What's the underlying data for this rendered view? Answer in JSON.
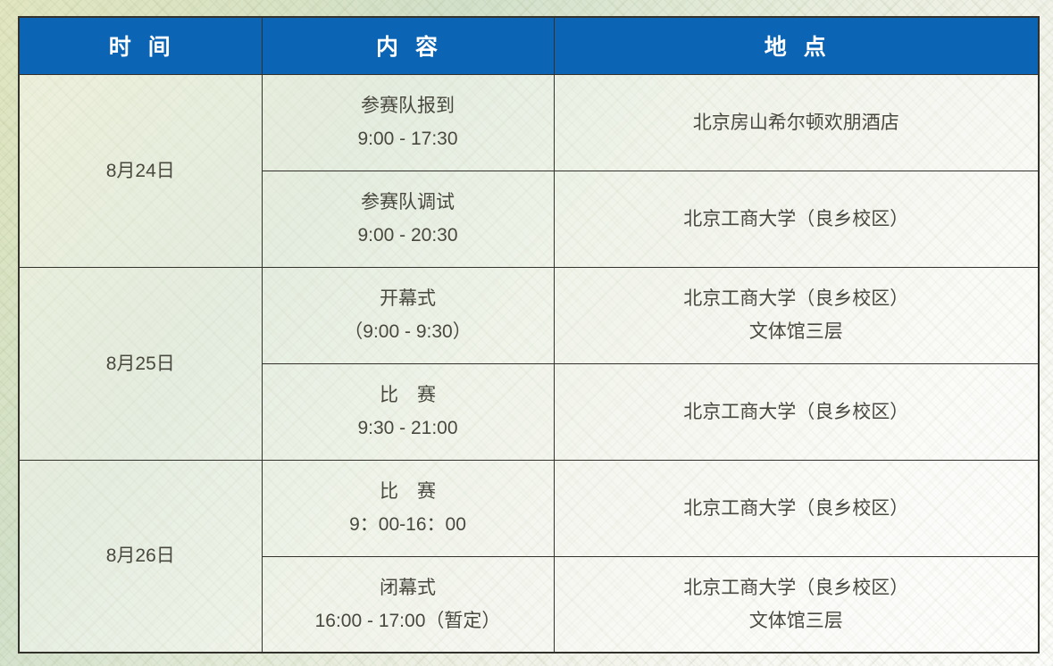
{
  "table": {
    "columns": [
      {
        "label": "时 间"
      },
      {
        "label": "内 容"
      },
      {
        "label": "地 点"
      }
    ],
    "days": [
      {
        "date": "8月24日",
        "rows": [
          {
            "content": [
              "参赛队报到",
              "9:00 - 17:30"
            ],
            "location": [
              "北京房山希尔顿欢朋酒店"
            ]
          },
          {
            "content": [
              "参赛队调试",
              "9:00 - 20:30"
            ],
            "location": [
              "北京工商大学（良乡校区）"
            ]
          }
        ]
      },
      {
        "date": "8月25日",
        "rows": [
          {
            "content": [
              "开幕式",
              "（9:00 - 9:30）"
            ],
            "location": [
              "北京工商大学（良乡校区）",
              "文体馆三层"
            ]
          },
          {
            "content": [
              "比　赛",
              "9:30 - 21:00"
            ],
            "location": [
              "北京工商大学（良乡校区）"
            ]
          }
        ]
      },
      {
        "date": "8月26日",
        "rows": [
          {
            "content": [
              "比　赛",
              "9：00-16：00"
            ],
            "location": [
              "北京工商大学（良乡校区）"
            ]
          },
          {
            "content": [
              "闭幕式",
              "16:00 - 17:00（暂定）"
            ],
            "location": [
              "北京工商大学（良乡校区）",
              "文体馆三层"
            ]
          }
        ]
      }
    ]
  },
  "colors": {
    "header_bg": "#0b64b4",
    "header_text": "#ffffff",
    "border": "#33312b",
    "body_text": "#49483f",
    "background_tint_top": "#d9e2c4",
    "background_tint_bottom": "#fcfcfa"
  }
}
